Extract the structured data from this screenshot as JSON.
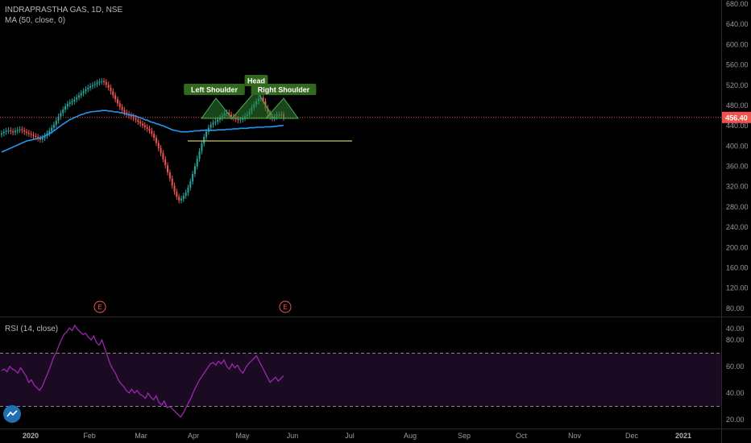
{
  "header": {
    "symbol_line": "INDRAPRASTHA GAS, 1D, NSE",
    "ma_line": "MA (50, close, 0)"
  },
  "rsi_panel": {
    "label": "RSI (14, close)"
  },
  "price_badge": "456.40",
  "earnings_marker": "E",
  "pattern_labels": [
    "Left Shoulder",
    "Head",
    "Right Shoulder"
  ],
  "colors": {
    "up": "#26a69a",
    "down": "#ef5350",
    "ma": "#2196f3",
    "rsi": "#9c27b0",
    "pattern": "#2e7d32",
    "neckline": "#c9c27a",
    "price_line": "#ef5350"
  },
  "chart_data": [
    {
      "type": "candlestick",
      "title": "INDRAPRASTHA GAS, 1D, NSE",
      "x_ticks": [
        "2020",
        "Feb",
        "Mar",
        "Apr",
        "May",
        "Jun",
        "Jul",
        "Aug",
        "Sep",
        "Oct",
        "Nov",
        "Dec",
        "2021"
      ],
      "y_ticks": [
        40,
        80,
        120,
        160,
        200,
        240,
        280,
        320,
        360,
        400,
        440,
        480,
        520,
        560,
        600,
        640,
        680
      ],
      "ylim": [
        20,
        690
      ],
      "last_price": 456.4,
      "close_series": [
        425,
        428,
        430,
        431,
        429,
        427,
        430,
        432,
        433,
        431,
        428,
        426,
        424,
        422,
        420,
        418,
        415,
        413,
        416,
        420,
        425,
        430,
        436,
        442,
        450,
        458,
        465,
        472,
        478,
        483,
        486,
        488,
        492,
        496,
        500,
        504,
        508,
        512,
        515,
        518,
        520,
        522,
        525,
        527,
        528,
        526,
        521,
        515,
        508,
        500,
        492,
        484,
        477,
        471,
        466,
        463,
        460,
        458,
        455,
        452,
        448,
        444,
        441,
        437,
        434,
        430,
        424,
        416,
        406,
        396,
        386,
        374,
        362,
        348,
        336,
        322,
        310,
        300,
        293,
        296,
        302,
        308,
        318,
        330,
        345,
        360,
        375,
        390,
        405,
        418,
        428,
        436,
        442,
        446,
        448,
        452,
        456,
        460,
        464,
        466,
        462,
        458,
        456,
        453,
        451,
        452,
        455,
        459,
        462,
        468,
        476,
        482,
        488,
        493,
        496,
        488,
        475,
        465,
        458,
        455,
        458,
        462,
        460,
        463,
        456
      ],
      "ma_series": {
        "name": "MA (50, close, 0)",
        "values": [
          388,
          390,
          392,
          394,
          396,
          398,
          400,
          402,
          404,
          406,
          408,
          410,
          411,
          412,
          413,
          414,
          415,
          416,
          418,
          420,
          422,
          424,
          427,
          430,
          433,
          437,
          440,
          443,
          446,
          449,
          452,
          454,
          456,
          458,
          460,
          462,
          463,
          465,
          466,
          467,
          468,
          468,
          469,
          469,
          470,
          470,
          470,
          469,
          469,
          468,
          467,
          467,
          466,
          465,
          464,
          463,
          462,
          461,
          460,
          459,
          457,
          456,
          454,
          452,
          451,
          449,
          447,
          446,
          444,
          443,
          441,
          440,
          438,
          436,
          434,
          432,
          431,
          430,
          429,
          428,
          428,
          428,
          428,
          429,
          429,
          430,
          430,
          430,
          431,
          431,
          431,
          431,
          431,
          431,
          431,
          432,
          432,
          432,
          432,
          433,
          433,
          433,
          434,
          434,
          434,
          435,
          435,
          435,
          435,
          436,
          436,
          436,
          437,
          437,
          437,
          437,
          438,
          438,
          438,
          438,
          439,
          439,
          440,
          440,
          441
        ]
      },
      "neckline_level": 410,
      "earnings_events": [
        {
          "x": "Jan"
        },
        {
          "x": "May"
        }
      ]
    },
    {
      "type": "line",
      "title": "RSI (14, close)",
      "y_ticks": [
        20,
        40,
        60,
        80
      ],
      "ylim": [
        15,
        95
      ],
      "bands": [
        30,
        70
      ],
      "values": [
        57,
        58,
        56,
        60,
        58,
        57,
        55,
        59,
        56,
        53,
        48,
        50,
        46,
        44,
        42,
        45,
        50,
        55,
        60,
        66,
        70,
        75,
        80,
        84,
        86,
        89,
        87,
        91,
        88,
        86,
        84,
        85,
        82,
        80,
        83,
        78,
        76,
        80,
        74,
        68,
        62,
        58,
        55,
        50,
        47,
        45,
        42,
        40,
        43,
        40,
        42,
        39,
        38,
        36,
        40,
        37,
        35,
        38,
        33,
        31,
        34,
        29,
        30,
        28,
        26,
        24,
        22,
        25,
        29,
        33,
        37,
        42,
        46,
        50,
        53,
        56,
        59,
        62,
        63,
        61,
        64,
        62,
        65,
        60,
        58,
        62,
        59,
        61,
        57,
        55,
        59,
        62,
        64,
        66,
        68,
        64,
        60,
        56,
        52,
        48,
        50,
        52,
        49,
        51,
        53
      ]
    }
  ]
}
